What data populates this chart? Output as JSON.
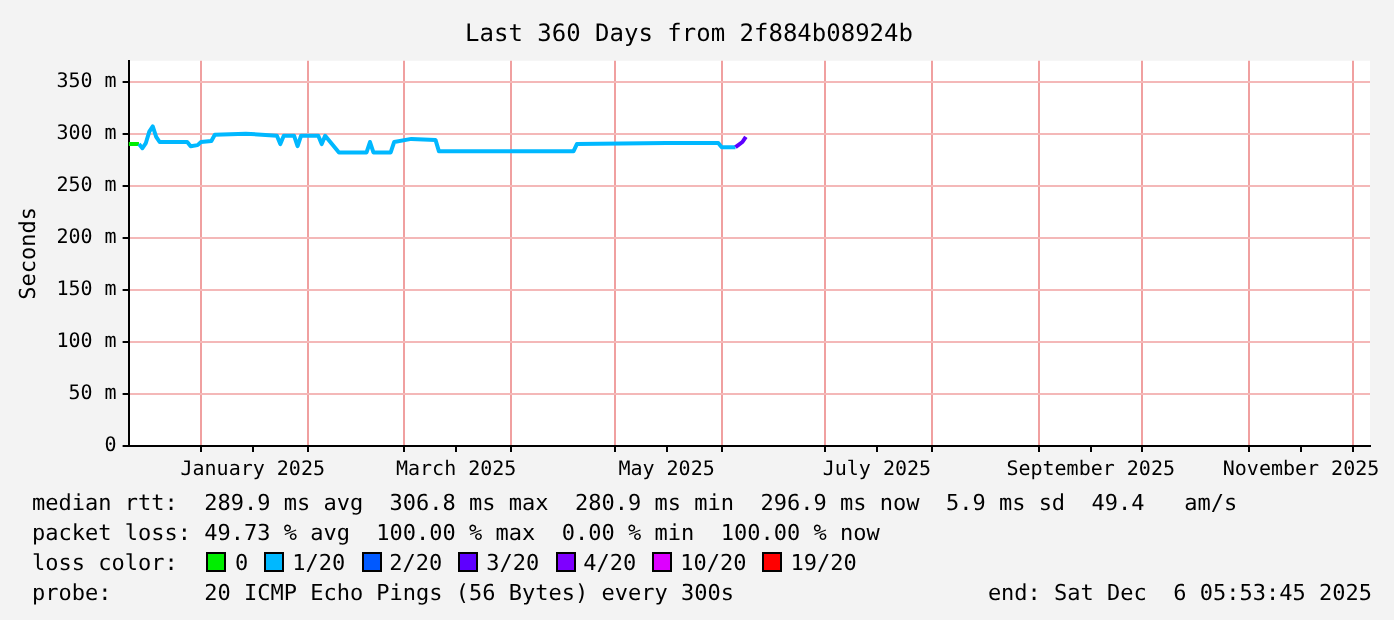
{
  "chart_data": {
    "type": "line",
    "title": "Last 360 Days from 2f884b08924b",
    "ylabel": "Seconds",
    "legend_title": "loss color:",
    "legend": "bottom",
    "grid": true,
    "marker": "none",
    "line_style": "solid",
    "xlim": [
      "2024-12-11",
      "2025-12-06"
    ],
    "xticks": [
      {
        "value": "2025-01-01",
        "label": null
      },
      {
        "value": "2025-01-16",
        "label": "January 2025"
      },
      {
        "value": "2025-02-01",
        "label": null
      },
      {
        "value": "2025-03-01",
        "label": null
      },
      {
        "value": "2025-03-16",
        "label": "March 2025"
      },
      {
        "value": "2025-04-01",
        "label": null
      },
      {
        "value": "2025-05-01",
        "label": null
      },
      {
        "value": "2025-05-16",
        "label": "May 2025"
      },
      {
        "value": "2025-06-01",
        "label": null
      },
      {
        "value": "2025-07-01",
        "label": null
      },
      {
        "value": "2025-07-16",
        "label": "July 2025"
      },
      {
        "value": "2025-08-01",
        "label": null
      },
      {
        "value": "2025-09-01",
        "label": null
      },
      {
        "value": "2025-09-16",
        "label": "September 2025"
      },
      {
        "value": "2025-10-01",
        "label": null
      },
      {
        "value": "2025-11-01",
        "label": null
      },
      {
        "value": "2025-11-16",
        "label": "November 2025"
      },
      {
        "value": "2025-12-01",
        "label": null
      }
    ],
    "ylim": [
      0,
      370
    ],
    "yticks": [
      0,
      {
        "value": 50,
        "label": "50 m"
      },
      {
        "value": 100,
        "label": "100 m"
      },
      {
        "value": 150,
        "label": "150 m"
      },
      {
        "value": 200,
        "label": "200 m"
      },
      {
        "value": 250,
        "label": "250 m"
      },
      {
        "value": 300,
        "label": "300 m"
      },
      {
        "value": 350,
        "label": "350 m"
      }
    ],
    "x": [
      "2024-12-11",
      "2024-12-14",
      "2024-12-15",
      "2024-12-16",
      "2024-12-17",
      "2024-12-18",
      "2024-12-19",
      "2024-12-20",
      "2024-12-28",
      "2024-12-29",
      "2024-12-31",
      "2025-01-01",
      "2025-01-04",
      "2025-01-05",
      "2025-01-14",
      "2025-01-23",
      "2025-01-24",
      "2025-01-25",
      "2025-01-28",
      "2025-01-29",
      "2025-01-30",
      "2025-02-04",
      "2025-02-05",
      "2025-02-06",
      "2025-02-10",
      "2025-02-18",
      "2025-02-19",
      "2025-02-20",
      "2025-02-25",
      "2025-02-26",
      "2025-03-03",
      "2025-03-10",
      "2025-03-11",
      "2025-03-23",
      "2025-04-19",
      "2025-04-20",
      "2025-05-16",
      "2025-05-31",
      "2025-06-01",
      "2025-06-05",
      "2025-06-07",
      "2025-06-08"
    ],
    "series": [
      {
        "name": "0",
        "color": "#00ee00",
        "values": [
          290,
          290,
          null,
          null,
          null,
          null,
          null,
          null,
          null,
          null,
          null,
          null,
          null,
          null,
          null,
          null,
          null,
          null,
          null,
          null,
          null,
          null,
          null,
          null,
          null,
          null,
          null,
          null,
          null,
          null,
          null,
          null,
          null,
          null,
          null,
          null,
          null,
          null,
          null,
          null,
          null,
          null
        ]
      },
      {
        "name": "1/20",
        "color": "#00b8ff",
        "values": [
          null,
          290,
          286,
          291,
          302,
          307,
          297,
          292,
          292,
          288,
          289,
          292,
          293,
          299,
          300,
          298,
          290,
          298,
          298,
          288,
          298,
          298,
          290,
          298,
          282,
          282,
          292,
          282,
          282,
          292,
          295,
          294,
          283,
          283,
          283,
          290,
          291,
          291,
          287,
          287,
          null,
          null
        ]
      },
      {
        "name": "2/20",
        "color": "#0059ff",
        "values": [
          null,
          null,
          null,
          null,
          null,
          null,
          null,
          null,
          null,
          null,
          null,
          null,
          null,
          null,
          null,
          null,
          null,
          null,
          null,
          null,
          null,
          null,
          null,
          null,
          null,
          null,
          null,
          null,
          null,
          null,
          null,
          null,
          null,
          null,
          null,
          null,
          null,
          null,
          null,
          null,
          null,
          null
        ]
      },
      {
        "name": "3/20",
        "color": "#5e00ff",
        "values": [
          null,
          null,
          null,
          null,
          null,
          null,
          null,
          null,
          null,
          null,
          null,
          null,
          null,
          null,
          null,
          null,
          null,
          null,
          null,
          null,
          null,
          null,
          null,
          null,
          null,
          null,
          null,
          null,
          null,
          null,
          null,
          null,
          null,
          null,
          null,
          null,
          null,
          null,
          null,
          287,
          292,
          297
        ]
      },
      {
        "name": "4/20",
        "color": "#7e00ff",
        "values": [
          null,
          null,
          null,
          null,
          null,
          null,
          null,
          null,
          null,
          null,
          null,
          null,
          null,
          null,
          null,
          null,
          null,
          null,
          null,
          null,
          null,
          null,
          null,
          null,
          null,
          null,
          null,
          null,
          null,
          null,
          null,
          null,
          null,
          null,
          null,
          null,
          null,
          null,
          null,
          null,
          null,
          null
        ]
      },
      {
        "name": "10/20",
        "color": "#dd00ff",
        "values": [
          null,
          null,
          null,
          null,
          null,
          null,
          null,
          null,
          null,
          null,
          null,
          null,
          null,
          null,
          null,
          null,
          null,
          null,
          null,
          null,
          null,
          null,
          null,
          null,
          null,
          null,
          null,
          null,
          null,
          null,
          null,
          null,
          null,
          null,
          null,
          null,
          null,
          null,
          null,
          null,
          null,
          null
        ]
      },
      {
        "name": "19/20",
        "color": "#ff0000",
        "values": [
          null,
          null,
          null,
          null,
          null,
          null,
          null,
          null,
          null,
          null,
          null,
          null,
          null,
          null,
          null,
          null,
          null,
          null,
          null,
          null,
          null,
          null,
          null,
          null,
          null,
          null,
          null,
          null,
          null,
          null,
          null,
          null,
          null,
          null,
          null,
          null,
          null,
          null,
          null,
          null,
          null,
          null
        ]
      }
    ],
    "annotations": [
      "median rtt:  289.9 ms avg  306.8 ms max  280.9 ms min  296.9 ms now  5.9 ms sd  49.4   am/s",
      "packet loss: 49.73 % avg  100.00 % max  0.00 % min  100.00 % now",
      "probe:       20 ICMP Echo Pings (56 Bytes) every 300s",
      "end: Sat Dec  6 05:53:45 2025"
    ]
  }
}
